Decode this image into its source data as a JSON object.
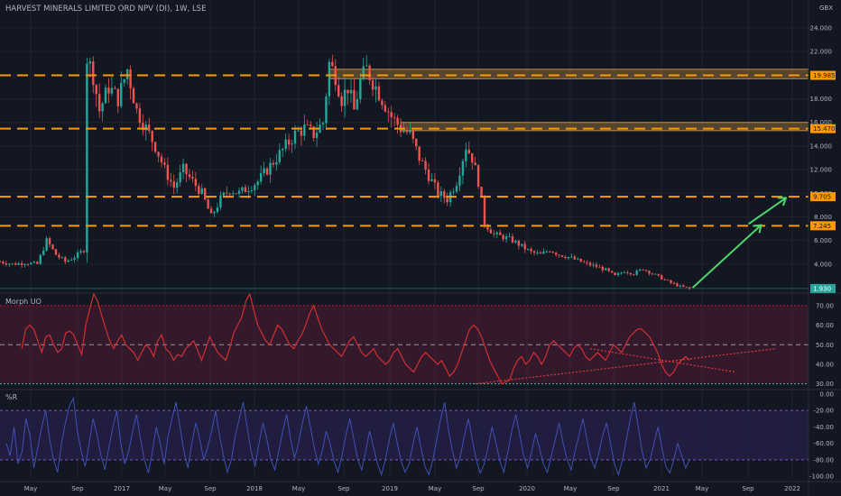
{
  "header": {
    "title": "HARVEST MINERALS LIMITED ORD NPV (DI), 1W, LSE",
    "currency": "GBX"
  },
  "colors": {
    "background": "#131722",
    "grid": "#1f2330",
    "up_candle": "#26a69a",
    "down_candle": "#ef5350",
    "level_line": "#ff9800",
    "zone_fill": "#ffb74d",
    "arrow": "#4cd66c",
    "uo_line": "#d32f2f",
    "uo_band": "#5d1a3a",
    "wr_line": "#3f51b5",
    "wr_band": "#2a2252",
    "current_tag": "#26a69a"
  },
  "chart_data": [
    {
      "type": "candlestick",
      "pane": "price",
      "x_ticks": [
        "May",
        "Sep",
        "2017",
        "May",
        "Sep",
        "2018",
        "May",
        "Sep",
        "2019",
        "May",
        "Sep",
        "2020",
        "May",
        "Sep",
        "2021",
        "May",
        "Sep",
        "2022"
      ],
      "x_range": [
        "2016-03",
        "2022-02"
      ],
      "y_ticks": [
        "24.000",
        "22.000",
        "20.000",
        "18.000",
        "16.000",
        "14.000",
        "12.000",
        "10.000",
        "8.000",
        "6.000",
        "4.000"
      ],
      "ylim": [
        2,
        24
      ],
      "unit": "GBX",
      "series_approx": [
        {
          "t": 0,
          "p": 4.2
        },
        {
          "t": 4,
          "p": 4.0
        },
        {
          "t": 8,
          "p": 4.1
        },
        {
          "t": 12,
          "p": 4.0
        },
        {
          "t": 15,
          "p": 6.0
        },
        {
          "t": 18,
          "p": 4.8
        },
        {
          "t": 21,
          "p": 4.2
        },
        {
          "t": 24,
          "p": 4.6
        },
        {
          "t": 27,
          "p": 5.2
        },
        {
          "t": 28,
          "p": 21.5
        },
        {
          "t": 30,
          "p": 20.0
        },
        {
          "t": 32,
          "p": 17.0
        },
        {
          "t": 35,
          "p": 19.0
        },
        {
          "t": 38,
          "p": 18.0
        },
        {
          "t": 41,
          "p": 20.5
        },
        {
          "t": 44,
          "p": 17.0
        },
        {
          "t": 47,
          "p": 15.5
        },
        {
          "t": 50,
          "p": 14.0
        },
        {
          "t": 53,
          "p": 12.0
        },
        {
          "t": 56,
          "p": 10.5
        },
        {
          "t": 59,
          "p": 12.0
        },
        {
          "t": 62,
          "p": 11.0
        },
        {
          "t": 65,
          "p": 10.0
        },
        {
          "t": 68,
          "p": 8.0
        },
        {
          "t": 71,
          "p": 9.5
        },
        {
          "t": 74,
          "p": 10.3
        },
        {
          "t": 77,
          "p": 10.0
        },
        {
          "t": 80,
          "p": 10.5
        },
        {
          "t": 83,
          "p": 11.0
        },
        {
          "t": 86,
          "p": 12.0
        },
        {
          "t": 89,
          "p": 13.0
        },
        {
          "t": 92,
          "p": 14.0
        },
        {
          "t": 95,
          "p": 15.0
        },
        {
          "t": 98,
          "p": 15.5
        },
        {
          "t": 101,
          "p": 15.0
        },
        {
          "t": 104,
          "p": 16.0
        },
        {
          "t": 106,
          "p": 21.0
        },
        {
          "t": 108,
          "p": 20.0
        },
        {
          "t": 110,
          "p": 18.0
        },
        {
          "t": 112,
          "p": 19.0
        },
        {
          "t": 114,
          "p": 17.0
        },
        {
          "t": 116,
          "p": 19.5
        },
        {
          "t": 118,
          "p": 20.5
        },
        {
          "t": 120,
          "p": 19.5
        },
        {
          "t": 123,
          "p": 18.0
        },
        {
          "t": 126,
          "p": 16.5
        },
        {
          "t": 129,
          "p": 15.5
        },
        {
          "t": 132,
          "p": 15.0
        },
        {
          "t": 135,
          "p": 13.0
        },
        {
          "t": 138,
          "p": 11.5
        },
        {
          "t": 141,
          "p": 10.0
        },
        {
          "t": 144,
          "p": 9.5
        },
        {
          "t": 147,
          "p": 11.0
        },
        {
          "t": 150,
          "p": 14.0
        },
        {
          "t": 152,
          "p": 13.0
        },
        {
          "t": 154,
          "p": 11.0
        },
        {
          "t": 156,
          "p": 7.5
        },
        {
          "t": 159,
          "p": 6.5
        },
        {
          "t": 162,
          "p": 6.3
        },
        {
          "t": 165,
          "p": 6.0
        },
        {
          "t": 168,
          "p": 5.5
        },
        {
          "t": 171,
          "p": 5.0
        },
        {
          "t": 174,
          "p": 4.8
        },
        {
          "t": 177,
          "p": 5.2
        },
        {
          "t": 180,
          "p": 4.8
        },
        {
          "t": 183,
          "p": 4.6
        },
        {
          "t": 186,
          "p": 4.3
        },
        {
          "t": 189,
          "p": 4.0
        },
        {
          "t": 192,
          "p": 3.8
        },
        {
          "t": 195,
          "p": 3.5
        },
        {
          "t": 198,
          "p": 3.0
        },
        {
          "t": 201,
          "p": 3.4
        },
        {
          "t": 204,
          "p": 3.2
        },
        {
          "t": 207,
          "p": 3.6
        },
        {
          "t": 210,
          "p": 3.2
        },
        {
          "t": 213,
          "p": 2.8
        },
        {
          "t": 216,
          "p": 2.4
        },
        {
          "t": 219,
          "p": 2.1
        },
        {
          "t": 222,
          "p": 1.93
        }
      ],
      "t_end_index": 222,
      "horizontal_levels": [
        {
          "value": 19.985,
          "label": "19.985"
        },
        {
          "value": 15.47,
          "label": "15.470"
        },
        {
          "value": 9.705,
          "label": "9.705"
        },
        {
          "value": 7.245,
          "label": "7.245"
        }
      ],
      "zones": [
        {
          "from_t": 106,
          "from_value": 19.7,
          "to_value": 20.5
        },
        {
          "from_t": 129,
          "from_value": 15.3,
          "to_value": 16.0
        }
      ],
      "current_price": {
        "value": 1.93,
        "label": "1.930"
      },
      "annotations": [
        {
          "type": "arrow",
          "from": {
            "t": 223,
            "p": 2.0
          },
          "to": {
            "t": 245,
            "p": 7.3
          }
        },
        {
          "type": "arrow",
          "from": {
            "t": 241,
            "p": 7.4
          },
          "to": {
            "t": 253,
            "p": 9.6
          }
        }
      ]
    },
    {
      "type": "line",
      "pane": "indicator",
      "title": "Morph UO",
      "y_ticks": [
        "70.00",
        "60.00",
        "50.00",
        "40.00",
        "30.00"
      ],
      "ylim": [
        28,
        75
      ],
      "bands": [
        {
          "from": 30,
          "to": 70
        }
      ],
      "reference_lines": [
        30,
        50,
        70
      ],
      "values_approx": [
        48,
        58,
        60,
        58,
        52,
        46,
        54,
        55,
        50,
        46,
        48,
        56,
        57,
        55,
        50,
        45,
        60,
        68,
        76,
        72,
        65,
        58,
        52,
        48,
        52,
        55,
        50,
        48,
        46,
        42,
        46,
        50,
        48,
        44,
        52,
        55,
        48,
        46,
        42,
        45,
        44,
        48,
        50,
        52,
        47,
        42,
        48,
        54,
        50,
        46,
        44,
        42,
        48,
        56,
        60,
        64,
        72,
        76,
        68,
        60,
        56,
        52,
        50,
        55,
        60,
        58,
        54,
        50,
        48,
        52,
        55,
        60,
        66,
        70,
        64,
        58,
        54,
        50,
        48,
        46,
        44,
        48,
        52,
        54,
        50,
        46,
        44,
        46,
        48,
        44,
        42,
        40,
        42,
        46,
        48,
        44,
        40,
        38,
        36,
        40,
        44,
        46,
        44,
        42,
        40,
        42,
        38,
        34,
        36,
        40,
        46,
        52,
        58,
        60,
        58,
        54,
        48,
        42,
        38,
        34,
        30,
        31,
        32,
        38,
        42,
        44,
        40,
        42,
        46,
        44,
        40,
        44,
        50,
        52,
        50,
        48,
        46,
        44,
        48,
        50,
        48,
        44,
        42,
        44,
        46,
        44,
        42,
        46,
        50,
        48,
        46,
        50,
        54,
        56,
        58,
        58,
        56,
        54,
        50,
        46,
        40,
        36,
        34,
        36,
        40,
        42,
        44,
        42
      ],
      "trendlines": [
        {
          "from": {
            "t": 153,
            "v": 30
          },
          "to": {
            "t": 250,
            "v": 48
          }
        },
        {
          "from": {
            "t": 190,
            "v": 48
          },
          "to": {
            "t": 237,
            "v": 36
          }
        }
      ]
    },
    {
      "type": "line",
      "pane": "indicator",
      "title": "%R",
      "y_ticks": [
        "0.00",
        "-20.00",
        "-40.00",
        "-60.00",
        "-80.00",
        "-100.00"
      ],
      "ylim": [
        -102,
        2
      ],
      "bands": [
        {
          "from": -80,
          "to": -20
        }
      ],
      "reference_lines": [
        -20,
        -80
      ],
      "values_approx": [
        -60,
        -75,
        -40,
        -85,
        -70,
        -30,
        -50,
        -90,
        -65,
        -40,
        -20,
        -55,
        -80,
        -95,
        -60,
        -35,
        -15,
        -5,
        -45,
        -70,
        -88,
        -60,
        -30,
        -50,
        -75,
        -92,
        -65,
        -40,
        -20,
        -60,
        -85,
        -70,
        -45,
        -25,
        -55,
        -80,
        -96,
        -70,
        -40,
        -60,
        -85,
        -50,
        -30,
        -10,
        -40,
        -70,
        -90,
        -60,
        -35,
        -55,
        -80,
        -65,
        -45,
        -20,
        -50,
        -75,
        -95,
        -80,
        -50,
        -30,
        -10,
        -40,
        -70,
        -88,
        -60,
        -35,
        -55,
        -80,
        -92,
        -70,
        -45,
        -25,
        -55,
        -78,
        -60,
        -35,
        -15,
        -40,
        -65,
        -85,
        -70,
        -45,
        -60,
        -82,
        -95,
        -75,
        -50,
        -30,
        -55,
        -80,
        -92,
        -70,
        -45,
        -65,
        -85,
        -98,
        -80,
        -55,
        -35,
        -60,
        -82,
        -95,
        -85,
        -60,
        -40,
        -65,
        -88,
        -98,
        -80,
        -55,
        -30,
        -10,
        -45,
        -70,
        -90,
        -75,
        -50,
        -30,
        -55,
        -80,
        -96,
        -85,
        -65,
        -40,
        -60,
        -82,
        -95,
        -70,
        -45,
        -25,
        -50,
        -75,
        -90,
        -70,
        -48,
        -65,
        -85,
        -95,
        -75,
        -55,
        -35,
        -60,
        -80,
        -92,
        -70,
        -50,
        -30,
        -55,
        -78,
        -90,
        -72,
        -50,
        -35,
        -60,
        -85,
        -98,
        -80,
        -55,
        -30,
        -10,
        -40,
        -70,
        -90,
        -80,
        -60,
        -40,
        -65,
        -88,
        -96,
        -80,
        -60,
        -75,
        -90,
        -80
      ]
    }
  ]
}
